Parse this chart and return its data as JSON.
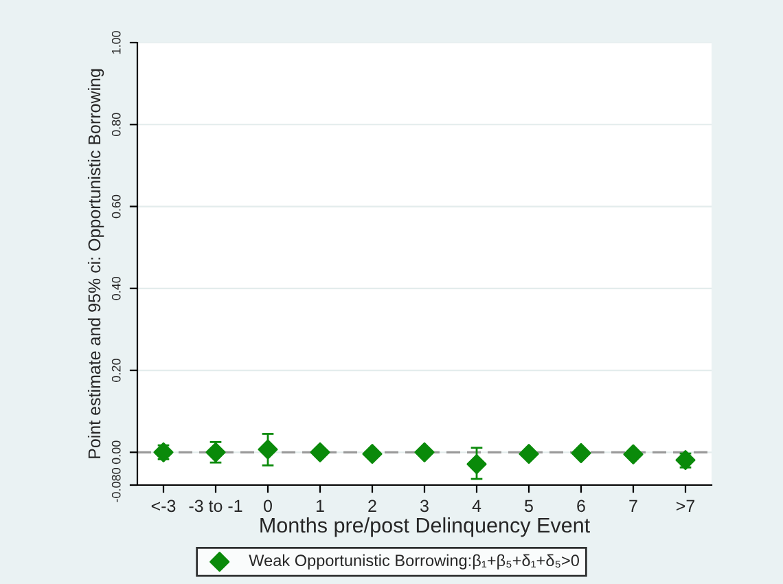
{
  "chart_data": {
    "type": "scatter",
    "xlabel": "Months pre/post Delinquency Event",
    "ylabel": "Point estimate and 95% ci: Opportunistic Borrowing",
    "categories": [
      "<-3",
      "-3 to -1",
      "0",
      "1",
      "2",
      "3",
      "4",
      "5",
      "6",
      "7",
      ">7"
    ],
    "series": [
      {
        "name": "Weak Opportunistic Borrowing:β₁+β₅+δ₁+δ₅>0",
        "color": "#0a8a0a",
        "values": [
          0.0,
          0.0,
          0.007,
          0.0,
          -0.004,
          0.0,
          -0.029,
          -0.004,
          -0.002,
          -0.005,
          -0.019
        ],
        "errors": [
          [
            -0.017,
            0.017
          ],
          [
            -0.025,
            0.025
          ],
          [
            -0.032,
            0.045
          ],
          null,
          null,
          null,
          [
            -0.065,
            0.011
          ],
          null,
          null,
          [
            -0.01,
            0.0
          ],
          [
            -0.037,
            -0.003
          ]
        ]
      }
    ],
    "marker": "diamond",
    "ylim": [
      -0.08,
      1.0
    ],
    "yticks": [
      {
        "value": -0.08,
        "label": "-0.080"
      },
      {
        "value": 0,
        "label": "0.00"
      },
      {
        "value": 0.2,
        "label": "0.20"
      },
      {
        "value": 0.4,
        "label": "0.40"
      },
      {
        "value": 0.6,
        "label": "0.60"
      },
      {
        "value": 0.8,
        "label": "0.80"
      },
      {
        "value": 1.0,
        "label": "1.00"
      }
    ],
    "grid": "y",
    "legend": "bottom",
    "ref_lines": [
      {
        "axis": "y",
        "value": 0,
        "color": "#999999",
        "line_style": "dashed"
      }
    ]
  }
}
